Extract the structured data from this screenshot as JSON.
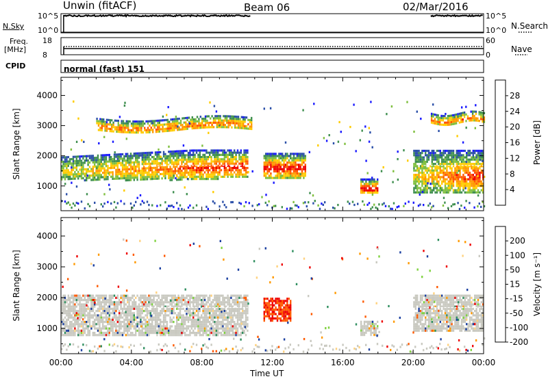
{
  "header": {
    "station": "Unwin (fitACF)",
    "beam": "Beam 06",
    "date": "02/Mar/2016"
  },
  "panels": {
    "nsky": {
      "label": "N.Sky",
      "left_ticks": [
        "10^5",
        "10^0"
      ],
      "right_ticks": [
        "10^5",
        "10^0"
      ],
      "right_label": "N.Search"
    },
    "freq": {
      "label_line1": "Freq.",
      "label_line2": "[MHz]",
      "left_ticks": [
        "18",
        "8"
      ],
      "right_ticks": [
        "60",
        "0"
      ],
      "right_label": "Nave"
    },
    "cpid": {
      "label": "CPID",
      "text": "normal (fast) 151"
    }
  },
  "colors": {
    "power": [
      "#1a1aff",
      "#2b4fa8",
      "#3f8f4f",
      "#7fbf3f",
      "#ffcc00",
      "#ff9900",
      "#ff5500",
      "#ee0000"
    ],
    "velocity": [
      "#ee0000",
      "#ff5a00",
      "#ff9900",
      "#ffd27f",
      "#c9c9c0",
      "#7fd23f",
      "#2f8f5f",
      "#1b3fa0"
    ]
  },
  "chart_data": [
    {
      "type": "heatmap",
      "name": "power",
      "ylabel": "Slant Range [km]",
      "xlabel": "",
      "xticks": [
        "00:00",
        "04:00",
        "08:00",
        "12:00",
        "16:00",
        "20:00",
        "00:00"
      ],
      "yticks": [
        "1000",
        "2000",
        "3000",
        "4000"
      ],
      "ylim": [
        180,
        4600
      ],
      "colorbar": {
        "label": "Power [dB]",
        "ticks": [
          "4",
          "8",
          "12",
          "16",
          "20",
          "24",
          "28"
        ],
        "range": [
          0,
          32
        ]
      },
      "regions": [
        {
          "t0": 0.0,
          "t1": 10.6,
          "r0": 1050,
          "r1": 2150,
          "level": "strong-band"
        },
        {
          "t0": 2.0,
          "t1": 10.8,
          "r0": 2750,
          "r1": 3350,
          "level": "upper-band"
        },
        {
          "t0": 11.5,
          "t1": 13.9,
          "r0": 1300,
          "r1": 2100,
          "level": "blobs"
        },
        {
          "t0": 17.0,
          "t1": 18.0,
          "r0": 750,
          "r1": 1250,
          "level": "blob"
        },
        {
          "t0": 20.0,
          "t1": 24.0,
          "r0": 800,
          "r1": 2200,
          "level": "strong-band"
        },
        {
          "t0": 21.0,
          "t1": 24.0,
          "r0": 3000,
          "r1": 3500,
          "level": "upper-band"
        }
      ]
    },
    {
      "type": "heatmap",
      "name": "velocity",
      "ylabel": "Slant Range [km]",
      "xlabel": "Time UT",
      "xticks": [
        "00:00",
        "04:00",
        "08:00",
        "12:00",
        "16:00",
        "20:00",
        "00:00"
      ],
      "yticks": [
        "1000",
        "2000",
        "3000",
        "4000"
      ],
      "ylim": [
        180,
        4600
      ],
      "colorbar": {
        "label": "Velocity [m s⁻¹]",
        "ticks": [
          "200",
          "100",
          "50",
          "15",
          "-15",
          "-50",
          "-100",
          "-200"
        ],
        "range": [
          -250,
          250
        ]
      },
      "regions": [
        {
          "t0": 0.0,
          "t1": 10.6,
          "r0": 800,
          "r1": 2100,
          "level": "near-zero"
        },
        {
          "t0": 11.5,
          "t1": 13.0,
          "r0": 1250,
          "r1": 2000,
          "level": "strong-negative"
        },
        {
          "t0": 17.0,
          "t1": 18.0,
          "r0": 800,
          "r1": 1250,
          "level": "near-zero"
        },
        {
          "t0": 20.0,
          "t1": 24.0,
          "r0": 900,
          "r1": 2100,
          "level": "near-zero"
        }
      ]
    }
  ]
}
